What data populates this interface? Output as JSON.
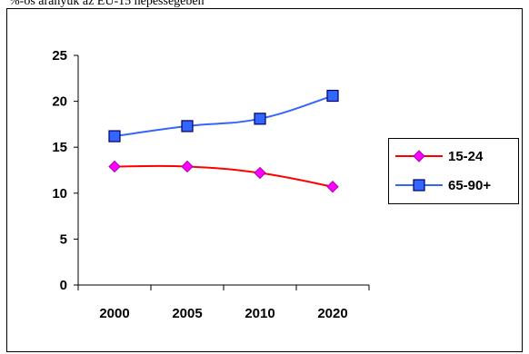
{
  "chart_data": {
    "type": "line",
    "title": "%-os arányuk az EU-15 népességében",
    "xlabel": "",
    "ylabel": "",
    "categories": [
      "2000",
      "2005",
      "2010",
      "2020"
    ],
    "ylim": [
      0,
      25
    ],
    "yticks": [
      0,
      5,
      10,
      15,
      20,
      25
    ],
    "grid": false,
    "legend_position": "right",
    "series": [
      {
        "name": "15-24",
        "values": [
          12.9,
          12.9,
          12.2,
          10.7
        ],
        "color": "#ff0000",
        "marker": "diamond",
        "marker_color": "#ff00ff"
      },
      {
        "name": "65-90+",
        "values": [
          16.2,
          17.3,
          18.1,
          20.6
        ],
        "color": "#3366ff",
        "marker": "square",
        "marker_color": "#3366ff"
      }
    ]
  }
}
